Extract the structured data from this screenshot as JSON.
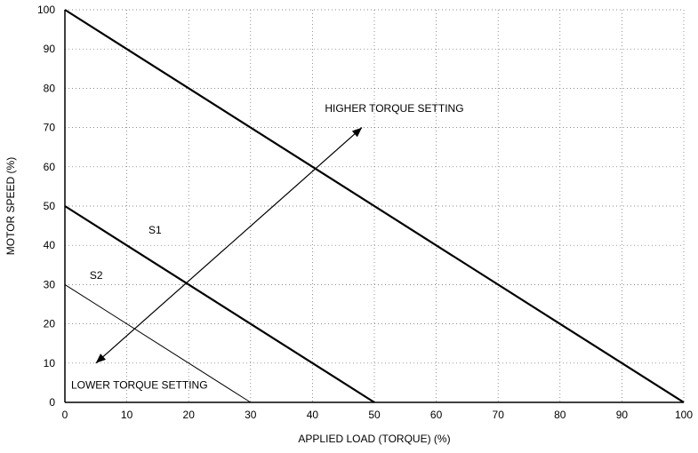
{
  "chart_data": {
    "type": "line",
    "xlabel": "APPLIED LOAD (TORQUE) (%)",
    "ylabel": "MOTOR SPEED (%)",
    "xlim": [
      0,
      100
    ],
    "ylim": [
      0,
      100
    ],
    "x_ticks": [
      "0",
      "10",
      "20",
      "30",
      "40",
      "50",
      "60",
      "70",
      "80",
      "90",
      "100"
    ],
    "y_ticks": [
      "0",
      "10",
      "20",
      "30",
      "40",
      "50",
      "60",
      "70",
      "80",
      "90",
      "100"
    ],
    "grid": true,
    "series": [
      {
        "points": [
          [
            0,
            100
          ],
          [
            100,
            0
          ]
        ],
        "style": "thick"
      },
      {
        "name": "S1",
        "points": [
          [
            0,
            50
          ],
          [
            50,
            0
          ]
        ],
        "style": "thick"
      },
      {
        "name": "S2",
        "points": [
          [
            0,
            30
          ],
          [
            30,
            0
          ]
        ],
        "style": "thin"
      }
    ],
    "arrow": {
      "from": [
        5,
        10
      ],
      "to": [
        48,
        70
      ],
      "double_headed": true
    },
    "annotations": [
      {
        "text": "HIGHER TORQUE SETTING",
        "x": 42,
        "y": 74
      },
      {
        "text": "LOWER TORQUE SETTING",
        "x": 1,
        "y": 3.5
      },
      {
        "text": "S1",
        "x": 13.5,
        "y": 43
      },
      {
        "text": "S2",
        "x": 4,
        "y": 31.5
      }
    ]
  }
}
